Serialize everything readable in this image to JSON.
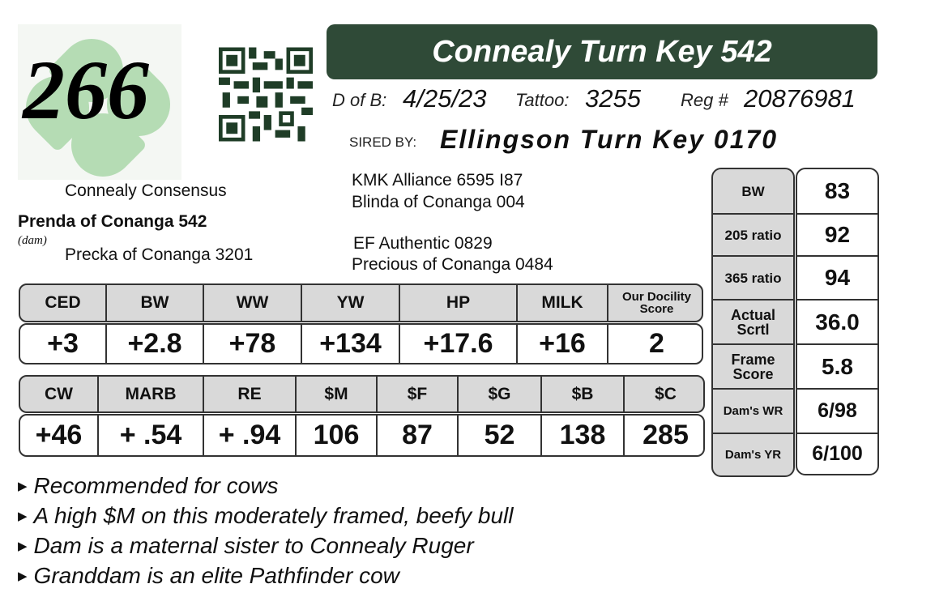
{
  "lot_number": "266",
  "title": "Connealy Turn Key 542",
  "details": {
    "dob_label": "D of B:",
    "dob": "4/25/23",
    "tattoo_label": "Tattoo:",
    "tattoo": "3255",
    "reg_label": "Reg #",
    "reg": "20876981"
  },
  "sire": {
    "label": "SIRED BY:",
    "name": "Ellingson Turn Key 0170"
  },
  "pedigree": {
    "dam_sire": "Connealy Consensus",
    "dam": "Prenda of Conanga 542",
    "dam_label": "(dam)",
    "dam_dam": "Precka of Conanga 3201",
    "sire_sire": "KMK Alliance 6595 I87",
    "sire_dam": "Blinda of Conanga 004",
    "sire_dam_sire": "EF Authentic 0829",
    "sire_dam_dam": "Precious of Conanga 0484"
  },
  "epd1": {
    "headers": [
      "CED",
      "BW",
      "WW",
      "YW",
      "HP",
      "MILK",
      "Our Docility Score"
    ],
    "values": [
      "+3",
      "+2.8",
      "+78",
      "+134",
      "+17.6",
      "+16",
      "2"
    ]
  },
  "epd2": {
    "headers": [
      "CW",
      "MARB",
      "RE",
      "$M",
      "$F",
      "$G",
      "$B",
      "$C"
    ],
    "values": [
      "+46",
      "+ .54",
      "+ .94",
      "106",
      "87",
      "52",
      "138",
      "285"
    ]
  },
  "performance": [
    {
      "label": "BW",
      "value": "83"
    },
    {
      "label": "205 ratio",
      "value": "92"
    },
    {
      "label": "365 ratio",
      "value": "94"
    },
    {
      "label": "Actual Scrtl",
      "value": "36.0"
    },
    {
      "label": "Frame Score",
      "value": "5.8"
    },
    {
      "label": "Dam's WR",
      "value": "6/98"
    },
    {
      "label": "Dam's YR",
      "value": "6/100"
    }
  ],
  "notes": [
    "Recommended for cows",
    "A high $M on this moderately framed, beefy bull",
    "Dam is a maternal sister to Connealy Ruger",
    "Granddam is an elite Pathfinder cow"
  ],
  "colors": {
    "title_bar": "#2f4a37",
    "header_gray": "#d9d9d9",
    "clover": "#b5dcb4"
  },
  "icons": [
    "clover-logo",
    "qr-code"
  ]
}
